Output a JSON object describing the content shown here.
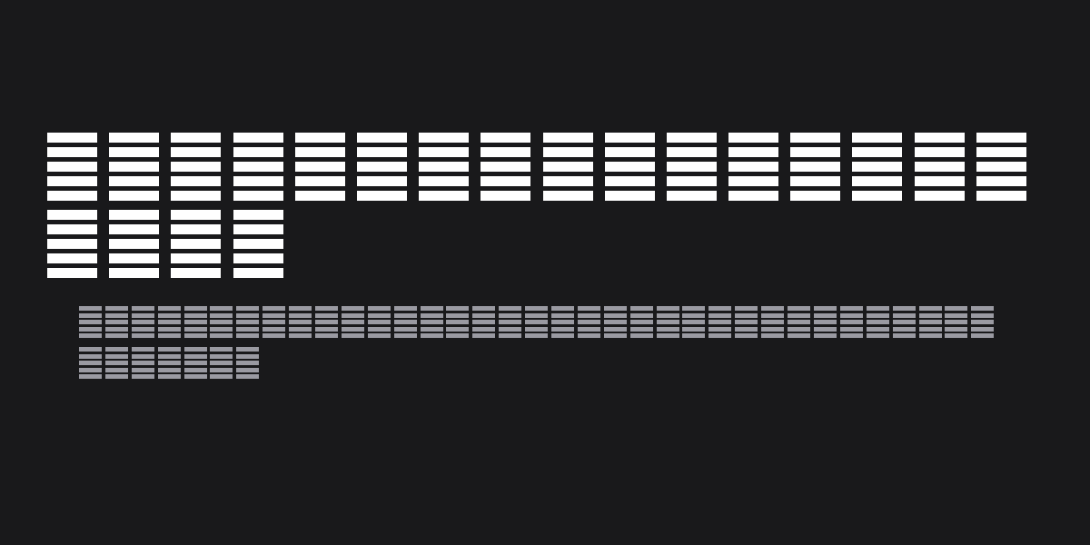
{
  "heading": {
    "line1_count": 16,
    "line2_count": 4,
    "color": "#ffffff"
  },
  "subheading": {
    "line1_count": 35,
    "line2_count": 7,
    "color": "#9a9aa2"
  },
  "background": "#19191b"
}
